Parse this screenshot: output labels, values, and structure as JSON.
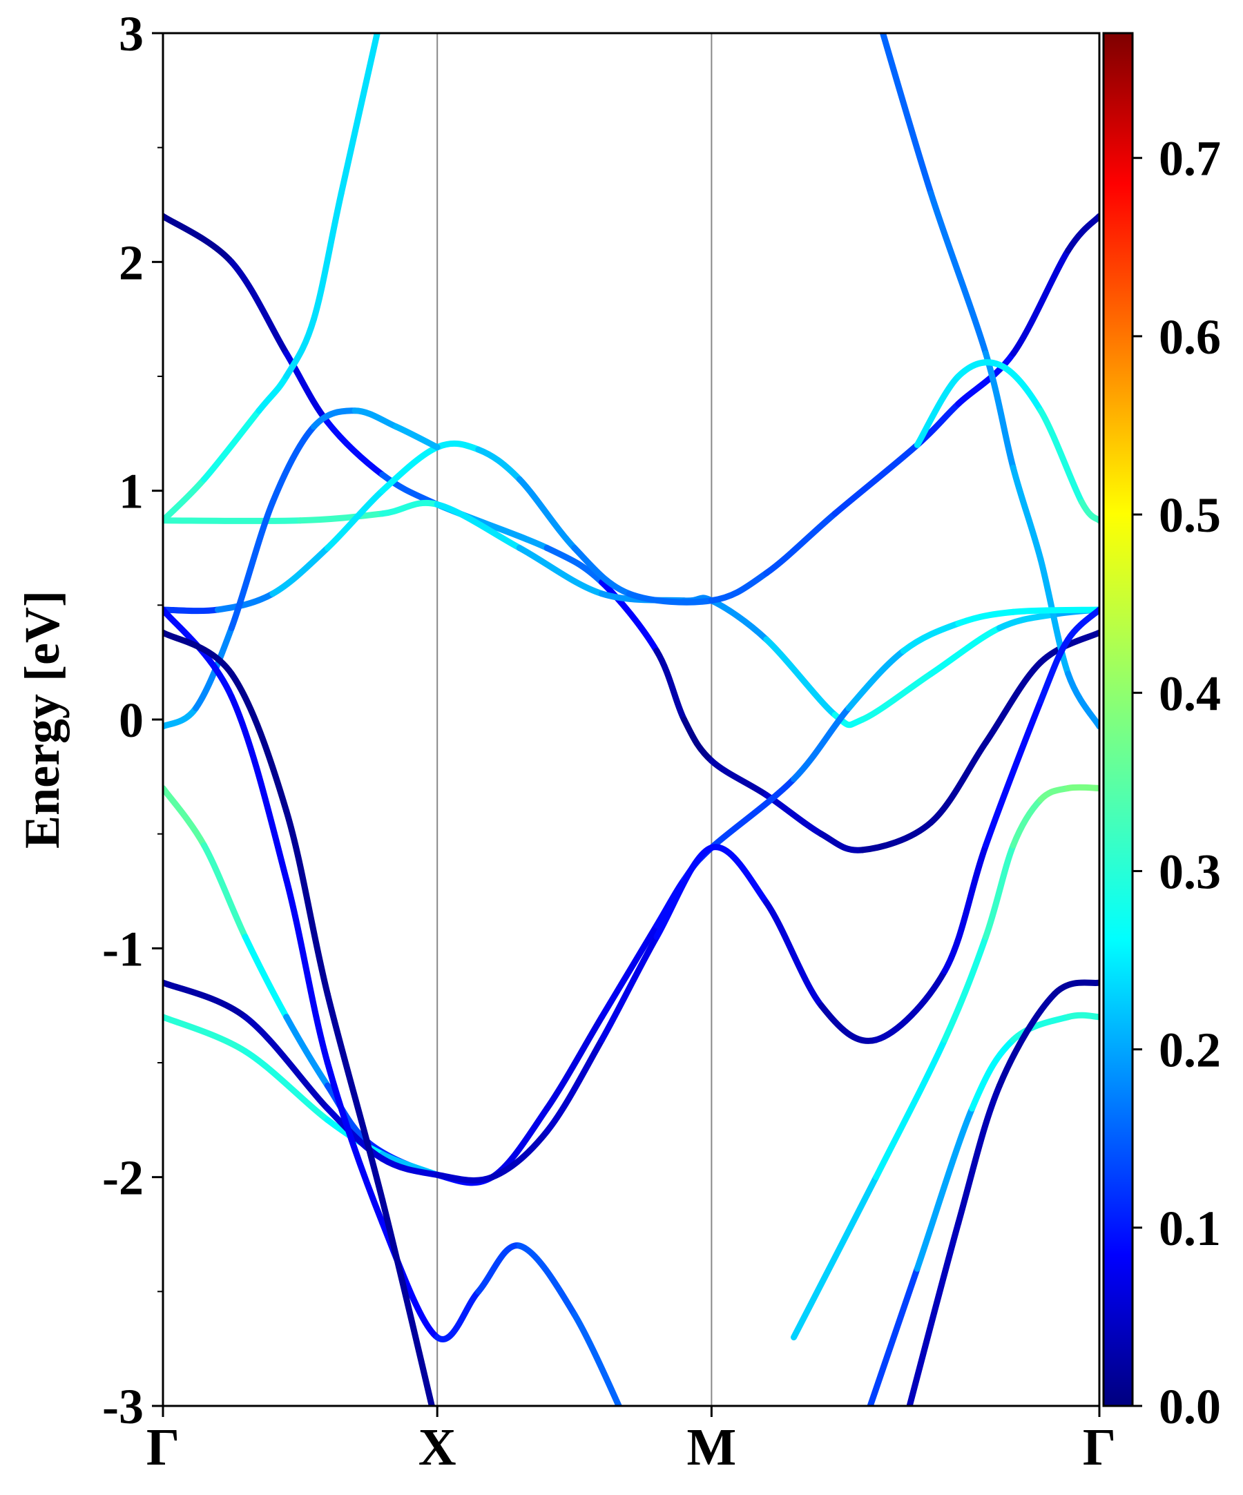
{
  "chart_data": {
    "type": "line",
    "title": "",
    "ylabel": "Energy [eV]",
    "xlabel": "",
    "ylim": [
      -3,
      3
    ],
    "yticks": [
      "-3",
      "-2",
      "-1",
      "0",
      "1",
      "2",
      "3"
    ],
    "xticks": [
      {
        "label": "Γ",
        "x": 0
      },
      {
        "label": "X",
        "x": 1
      },
      {
        "label": "M",
        "x": 2
      },
      {
        "label": "Γ",
        "x": 3.414
      }
    ],
    "grid": false,
    "colorbar": {
      "min": 0.0,
      "max": 0.77,
      "ticks": [
        "0.0",
        "0.1",
        "0.2",
        "0.3",
        "0.4",
        "0.5",
        "0.6",
        "0.7"
      ],
      "colormap": "jet"
    },
    "bands": [
      {
        "points": [
          [
            0,
            2.2
          ],
          [
            0.25,
            2.0
          ],
          [
            0.45,
            1.6
          ],
          [
            0.6,
            1.3
          ],
          [
            0.8,
            1.07
          ],
          [
            1.0,
            0.94
          ],
          [
            1.4,
            0.75
          ],
          [
            1.6,
            0.6
          ],
          [
            1.8,
            0.3
          ],
          [
            1.9,
            0.0
          ],
          [
            2.0,
            -0.18
          ],
          [
            2.2,
            -0.33
          ],
          [
            2.4,
            -0.5
          ],
          [
            2.55,
            -0.57
          ],
          [
            2.8,
            -0.45
          ],
          [
            3.0,
            -0.1
          ],
          [
            3.2,
            0.25
          ],
          [
            3.414,
            0.38
          ]
        ],
        "weights": [
          0.01,
          0.02,
          0.05,
          0.08,
          0.1,
          0.2,
          0.2,
          0.12,
          0.05,
          0.01,
          0.01,
          0.05,
          0.05,
          0.02,
          0.02,
          0.02,
          0.02,
          0.02
        ]
      },
      {
        "points": [
          [
            0,
            0.87
          ],
          [
            0.5,
            0.87
          ],
          [
            0.8,
            0.9
          ],
          [
            1.0,
            0.94
          ],
          [
            1.3,
            0.75
          ],
          [
            1.6,
            0.55
          ],
          [
            1.9,
            0.52
          ],
          [
            2.0,
            0.52
          ],
          [
            2.2,
            0.35
          ],
          [
            2.45,
            0.02
          ],
          [
            2.55,
            0.0
          ],
          [
            2.8,
            0.2
          ],
          [
            3.05,
            0.4
          ],
          [
            3.25,
            0.46
          ],
          [
            3.414,
            0.48
          ]
        ],
        "weights": [
          0.3,
          0.32,
          0.32,
          0.27,
          0.22,
          0.2,
          0.18,
          0.18,
          0.2,
          0.26,
          0.28,
          0.28,
          0.26,
          0.2,
          0.2
        ]
      },
      {
        "points": [
          [
            0,
            0.87
          ],
          [
            0.15,
            1.05
          ],
          [
            0.35,
            1.35
          ],
          [
            0.45,
            1.5
          ],
          [
            0.55,
            1.75
          ],
          [
            0.65,
            2.3
          ],
          [
            0.8,
            3.1
          ]
        ],
        "weights": [
          0.32,
          0.3,
          0.26,
          0.24,
          0.24,
          0.24,
          0.24
        ]
      },
      {
        "points": [
          [
            0,
            0.48
          ],
          [
            0.2,
            0.48
          ],
          [
            0.4,
            0.55
          ],
          [
            0.6,
            0.75
          ],
          [
            0.8,
            1.0
          ],
          [
            1.0,
            1.19
          ],
          [
            1.15,
            1.18
          ],
          [
            1.3,
            1.05
          ],
          [
            1.5,
            0.75
          ],
          [
            1.7,
            0.55
          ],
          [
            2.0,
            0.52
          ],
          [
            2.2,
            0.64
          ],
          [
            2.45,
            0.9
          ],
          [
            2.75,
            1.2
          ],
          [
            2.9,
            1.38
          ],
          [
            3.1,
            1.6
          ],
          [
            3.3,
            2.05
          ],
          [
            3.414,
            2.2
          ]
        ],
        "weights": [
          0.1,
          0.15,
          0.2,
          0.24,
          0.25,
          0.26,
          0.24,
          0.2,
          0.18,
          0.16,
          0.16,
          0.14,
          0.14,
          0.12,
          0.1,
          0.08,
          0.04,
          0.02
        ]
      },
      {
        "points": [
          [
            0,
            -0.03
          ],
          [
            0.12,
            0.05
          ],
          [
            0.25,
            0.4
          ],
          [
            0.4,
            0.95
          ],
          [
            0.55,
            1.28
          ],
          [
            0.7,
            1.35
          ],
          [
            0.85,
            1.28
          ],
          [
            1.0,
            1.19
          ]
        ],
        "weights": [
          0.22,
          0.2,
          0.16,
          0.14,
          0.16,
          0.2,
          0.2,
          0.22
        ]
      },
      {
        "points": [
          [
            2.6,
            3.1
          ],
          [
            2.8,
            2.3
          ],
          [
            3.0,
            1.6
          ],
          [
            3.1,
            1.1
          ],
          [
            3.2,
            0.7
          ],
          [
            3.3,
            0.2
          ],
          [
            3.414,
            -0.03
          ]
        ],
        "weights": [
          0.15,
          0.16,
          0.18,
          0.2,
          0.22,
          0.2,
          0.18
        ]
      },
      {
        "points": [
          [
            2.75,
            1.2
          ],
          [
            2.9,
            1.5
          ],
          [
            3.05,
            1.55
          ],
          [
            3.2,
            1.35
          ],
          [
            3.35,
            0.95
          ],
          [
            3.414,
            0.87
          ]
        ],
        "weights": [
          0.24,
          0.25,
          0.25,
          0.26,
          0.32,
          0.32
        ]
      },
      {
        "points": [
          [
            2.3,
            -2.7
          ],
          [
            2.6,
            -2.0
          ],
          [
            2.85,
            -1.4
          ],
          [
            3.0,
            -0.95
          ],
          [
            3.1,
            -0.55
          ],
          [
            3.2,
            -0.35
          ],
          [
            3.3,
            -0.3
          ],
          [
            3.414,
            -0.3
          ]
        ],
        "weights": [
          0.22,
          0.24,
          0.27,
          0.3,
          0.33,
          0.36,
          0.38,
          0.38
        ]
      },
      {
        "points": [
          [
            0,
            -0.3
          ],
          [
            0.15,
            -0.55
          ],
          [
            0.3,
            -0.95
          ],
          [
            0.45,
            -1.3
          ],
          [
            0.6,
            -1.6
          ],
          [
            0.75,
            -1.85
          ],
          [
            1.0,
            -1.99
          ],
          [
            1.2,
            -2.0
          ],
          [
            1.4,
            -1.7
          ],
          [
            1.6,
            -1.3
          ],
          [
            1.8,
            -0.9
          ],
          [
            1.9,
            -0.7
          ],
          [
            2.0,
            -0.56
          ],
          [
            2.3,
            -0.26
          ],
          [
            2.5,
            0.05
          ],
          [
            2.7,
            0.3
          ],
          [
            2.9,
            0.42
          ],
          [
            3.1,
            0.47
          ],
          [
            3.414,
            0.48
          ]
        ],
        "weights": [
          0.36,
          0.34,
          0.3,
          0.22,
          0.16,
          0.12,
          0.1,
          0.08,
          0.06,
          0.07,
          0.08,
          0.1,
          0.12,
          0.14,
          0.2,
          0.22,
          0.26,
          0.26,
          0.26
        ]
      },
      {
        "points": [
          [
            0,
            -1.3
          ],
          [
            0.3,
            -1.45
          ],
          [
            0.6,
            -1.75
          ],
          [
            0.8,
            -1.9
          ],
          [
            1.0,
            -1.99
          ]
        ],
        "weights": [
          0.3,
          0.3,
          0.28,
          0.24,
          0.2
        ]
      },
      {
        "points": [
          [
            0,
            -1.15
          ],
          [
            0.3,
            -1.3
          ],
          [
            0.6,
            -1.7
          ],
          [
            0.8,
            -1.92
          ],
          [
            1.0,
            -1.99
          ],
          [
            1.2,
            -2.0
          ],
          [
            1.4,
            -1.8
          ],
          [
            1.6,
            -1.4
          ],
          [
            1.8,
            -0.95
          ],
          [
            2.0,
            -0.56
          ],
          [
            2.2,
            -0.8
          ],
          [
            2.4,
            -1.25
          ],
          [
            2.6,
            -1.4
          ],
          [
            2.85,
            -1.1
          ],
          [
            3.0,
            -0.55
          ],
          [
            3.2,
            0.08
          ],
          [
            3.3,
            0.35
          ],
          [
            3.414,
            0.48
          ]
        ],
        "weights": [
          0.02,
          0.03,
          0.05,
          0.06,
          0.06,
          0.04,
          0.04,
          0.06,
          0.08,
          0.1,
          0.08,
          0.04,
          0.02,
          0.06,
          0.08,
          0.1,
          0.1,
          0.1
        ]
      },
      {
        "points": [
          [
            0,
            0.48
          ],
          [
            0.25,
            0.1
          ],
          [
            0.45,
            -0.7
          ],
          [
            0.6,
            -1.5
          ],
          [
            0.8,
            -2.2
          ],
          [
            1.0,
            -2.7
          ],
          [
            1.15,
            -2.5
          ],
          [
            1.3,
            -2.3
          ],
          [
            1.5,
            -2.6
          ],
          [
            1.7,
            -3.1
          ]
        ],
        "weights": [
          0.1,
          0.08,
          0.08,
          0.08,
          0.08,
          0.09,
          0.12,
          0.14,
          0.15,
          0.16
        ]
      },
      {
        "points": [
          [
            0,
            0.38
          ],
          [
            0.25,
            0.2
          ],
          [
            0.45,
            -0.4
          ],
          [
            0.6,
            -1.2
          ],
          [
            0.8,
            -2.1
          ],
          [
            1.0,
            -3.1
          ]
        ],
        "weights": [
          0.01,
          0.01,
          0.01,
          0.02,
          0.02,
          0.02
        ]
      },
      {
        "points": [
          [
            2.55,
            -3.1
          ],
          [
            2.75,
            -2.4
          ],
          [
            2.95,
            -1.7
          ],
          [
            3.1,
            -1.4
          ],
          [
            3.3,
            -1.3
          ],
          [
            3.414,
            -1.3
          ]
        ],
        "weights": [
          0.1,
          0.16,
          0.24,
          0.28,
          0.3,
          0.3
        ]
      },
      {
        "points": [
          [
            2.7,
            -3.1
          ],
          [
            2.9,
            -2.2
          ],
          [
            3.05,
            -1.6
          ],
          [
            3.25,
            -1.2
          ],
          [
            3.414,
            -1.15
          ]
        ],
        "weights": [
          0.04,
          0.04,
          0.03,
          0.02,
          0.02
        ]
      }
    ]
  }
}
